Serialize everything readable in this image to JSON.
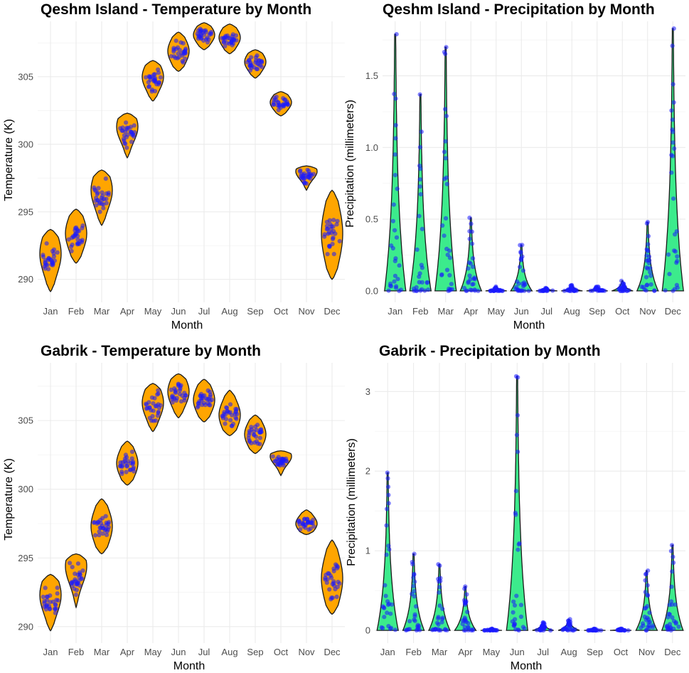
{
  "colors": {
    "temperature_fill": "#FFA500",
    "precipitation_fill": "#3CEB8C",
    "outline": "#1a1a1a",
    "point": "#1a1aff",
    "gridline": "#ebebeb"
  },
  "chart_data": [
    {
      "type": "violin",
      "title": "Qeshm Island - Temperature by Month",
      "xlabel": "Month",
      "ylabel": "Temperature (K)",
      "categories": [
        "Jan",
        "Feb",
        "Mar",
        "Apr",
        "May",
        "Jun",
        "Jul",
        "Aug",
        "Sep",
        "Oct",
        "Nov",
        "Dec"
      ],
      "yticks": [
        290,
        295,
        300,
        305
      ],
      "ytick_labels": [
        "290",
        "295",
        "300",
        "305"
      ],
      "ylim": [
        288.3,
        309.1
      ],
      "series": [
        {
          "min": 289.1,
          "max": 293.7,
          "mode": 291.9
        },
        {
          "min": 291.2,
          "max": 295.2,
          "mode": 293.4
        },
        {
          "min": 294.0,
          "max": 298.1,
          "mode": 296.6
        },
        {
          "min": 299.0,
          "max": 302.3,
          "mode": 301.3
        },
        {
          "min": 303.2,
          "max": 306.2,
          "mode": 305.0
        },
        {
          "min": 305.4,
          "max": 308.3,
          "mode": 306.9
        },
        {
          "min": 307.0,
          "max": 309.0,
          "mode": 308.1
        },
        {
          "min": 306.7,
          "max": 308.9,
          "mode": 307.9
        },
        {
          "min": 304.9,
          "max": 307.0,
          "mode": 306.1
        },
        {
          "min": 302.1,
          "max": 303.9,
          "mode": 303.1
        },
        {
          "min": 296.6,
          "max": 298.4,
          "mode": 298.0
        },
        {
          "min": 290.0,
          "max": 296.6,
          "mode": 293.4
        }
      ]
    },
    {
      "type": "violin",
      "title": "Qeshm Island - Precipitation by Month",
      "xlabel": "Month",
      "ylabel": "Precipitation (millimeters)",
      "categories": [
        "Jan",
        "Feb",
        "Mar",
        "Apr",
        "May",
        "Jun",
        "Jul",
        "Aug",
        "Sep",
        "Oct",
        "Nov",
        "Dec"
      ],
      "yticks": [
        0.0,
        0.5,
        1.0,
        1.5
      ],
      "ytick_labels": [
        "0.0",
        "0.5",
        "1.0",
        "1.5"
      ],
      "ylim": [
        -0.08,
        1.88
      ],
      "series": [
        {
          "min": 0,
          "max": 1.79
        },
        {
          "min": 0,
          "max": 1.37
        },
        {
          "min": 0,
          "max": 1.7
        },
        {
          "min": 0,
          "max": 0.51
        },
        {
          "min": 0,
          "max": 0.03
        },
        {
          "min": 0,
          "max": 0.32
        },
        {
          "min": 0,
          "max": 0.02
        },
        {
          "min": 0,
          "max": 0.04
        },
        {
          "min": 0,
          "max": 0.03
        },
        {
          "min": 0,
          "max": 0.07
        },
        {
          "min": 0,
          "max": 0.48
        },
        {
          "min": 0,
          "max": 1.83
        }
      ]
    },
    {
      "type": "violin",
      "title": "Gabrik - Temperature by Month",
      "xlabel": "Month",
      "ylabel": "Temperature (K)",
      "categories": [
        "Jan",
        "Feb",
        "Mar",
        "Apr",
        "May",
        "Jun",
        "Jul",
        "Aug",
        "Sep",
        "Oct",
        "Nov",
        "Dec"
      ],
      "yticks": [
        290,
        295,
        300,
        305
      ],
      "ytick_labels": [
        "290",
        "295",
        "300",
        "305"
      ],
      "ylim": [
        288.8,
        309.2
      ],
      "series": [
        {
          "min": 289.7,
          "max": 293.8,
          "mode": 292.3
        },
        {
          "min": 291.4,
          "max": 295.3,
          "mode": 294.4
        },
        {
          "min": 295.3,
          "max": 299.3,
          "mode": 297.3
        },
        {
          "min": 300.3,
          "max": 303.5,
          "mode": 301.9
        },
        {
          "min": 304.2,
          "max": 307.7,
          "mode": 306.3
        },
        {
          "min": 305.2,
          "max": 308.4,
          "mode": 307.1
        },
        {
          "min": 304.9,
          "max": 308.0,
          "mode": 306.5
        },
        {
          "min": 303.9,
          "max": 307.2,
          "mode": 305.4
        },
        {
          "min": 302.6,
          "max": 305.4,
          "mode": 304.0
        },
        {
          "min": 301.0,
          "max": 302.8,
          "mode": 302.4
        },
        {
          "min": 296.7,
          "max": 298.5,
          "mode": 297.5
        },
        {
          "min": 290.9,
          "max": 296.3,
          "mode": 293.5
        }
      ]
    },
    {
      "type": "violin",
      "title": "Gabrik - Precipitation by Month",
      "xlabel": "Month",
      "ylabel": "Precipitation (millimeters)",
      "categories": [
        "Jan",
        "Feb",
        "Mar",
        "Apr",
        "May",
        "Jun",
        "Jul",
        "Aug",
        "Sep",
        "Oct",
        "Nov",
        "Dec"
      ],
      "yticks": [
        0,
        1,
        2,
        3
      ],
      "ytick_labels": [
        "0",
        "1",
        "2",
        "3"
      ],
      "ylim": [
        -0.16,
        3.36
      ],
      "series": [
        {
          "min": 0,
          "max": 1.98
        },
        {
          "min": 0,
          "max": 0.96
        },
        {
          "min": 0,
          "max": 0.83
        },
        {
          "min": 0,
          "max": 0.55
        },
        {
          "min": 0,
          "max": 0.02
        },
        {
          "min": 0,
          "max": 3.19
        },
        {
          "min": 0,
          "max": 0.1
        },
        {
          "min": 0,
          "max": 0.14
        },
        {
          "min": 0,
          "max": 0.02
        },
        {
          "min": 0,
          "max": 0.02
        },
        {
          "min": 0,
          "max": 0.75
        },
        {
          "min": 0,
          "max": 1.07
        }
      ]
    }
  ]
}
